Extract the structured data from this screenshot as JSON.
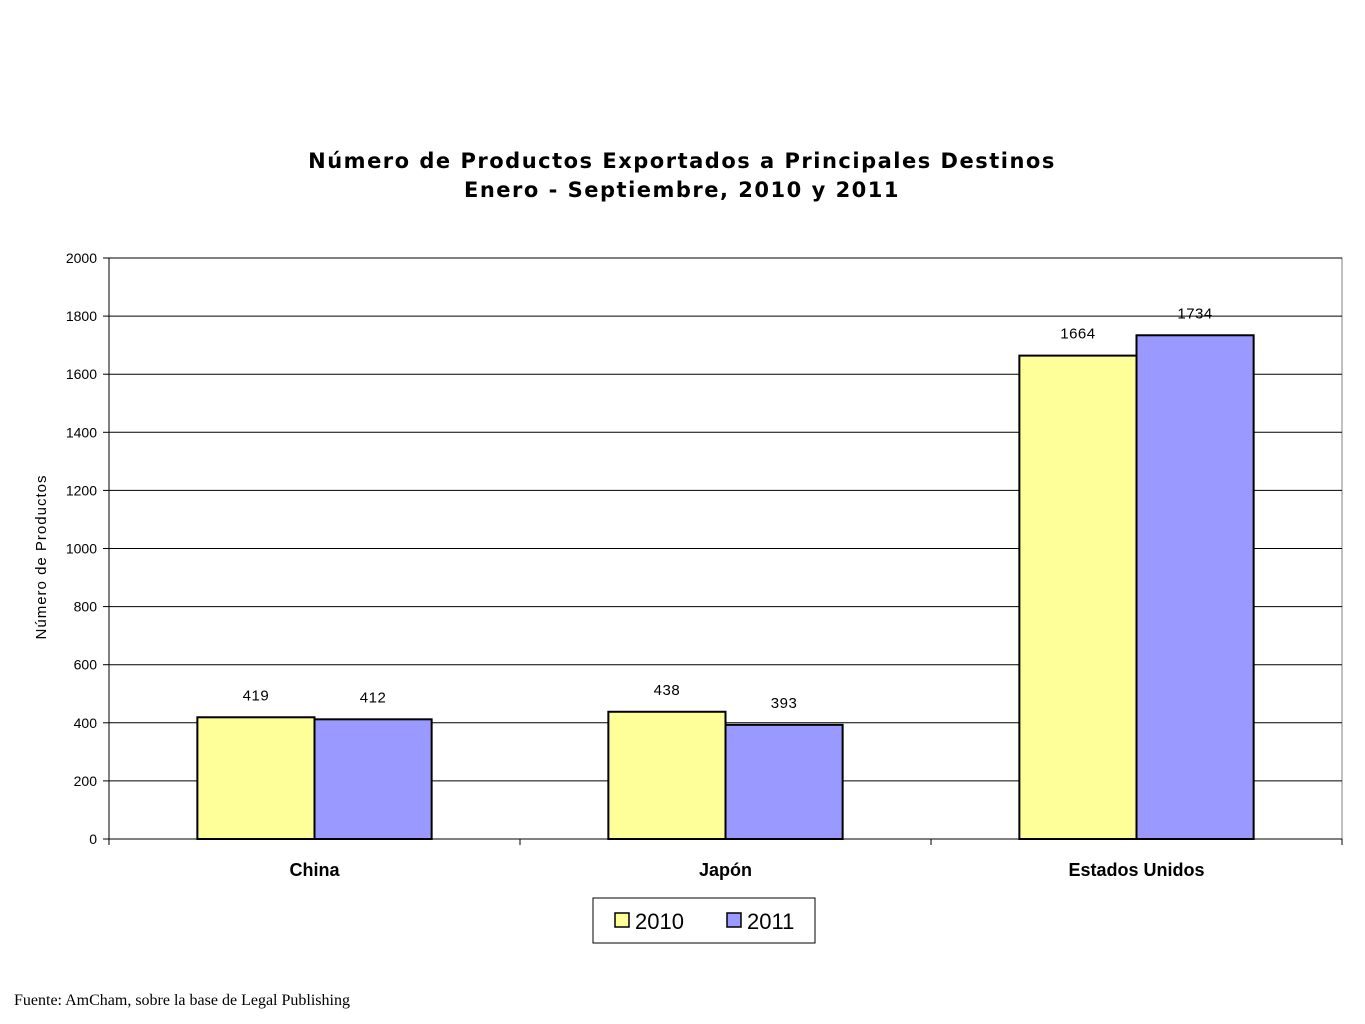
{
  "chart_data": {
    "type": "bar",
    "title": [
      "Número de Productos Exportados a Principales Destinos",
      "Enero - Septiembre, 2010 y 2011"
    ],
    "xlabel": "",
    "ylabel": "Número de Productos",
    "categories": [
      "China",
      "Japón",
      "Estados Unidos"
    ],
    "series": [
      {
        "name": "2010",
        "values": [
          419,
          438,
          1664
        ],
        "color": "#ffff99"
      },
      {
        "name": "2011",
        "values": [
          412,
          393,
          1734
        ],
        "color": "#9999ff"
      }
    ],
    "ylim": [
      0,
      2000
    ],
    "yticks": [
      0,
      200,
      400,
      600,
      800,
      1000,
      1200,
      1400,
      1600,
      1800,
      2000
    ],
    "grid": true,
    "legend": "bottom"
  },
  "source": "Fuente: AmCham, sobre la base de Legal Publishing"
}
